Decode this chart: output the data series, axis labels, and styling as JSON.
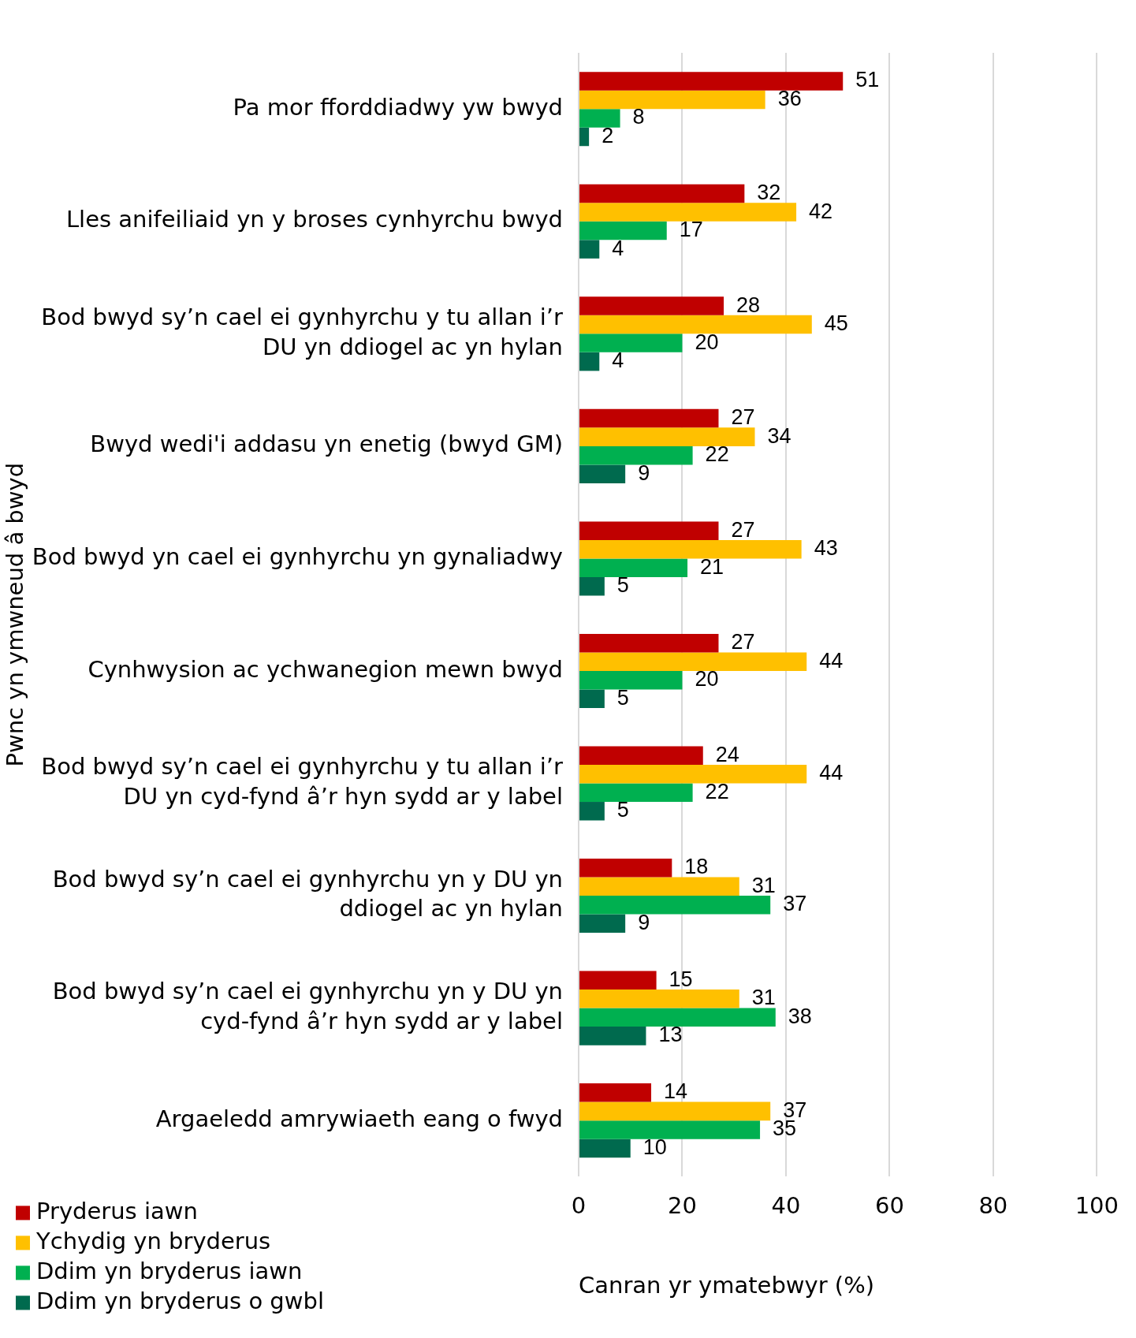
{
  "chart_data": {
    "type": "bar",
    "orientation": "horizontal",
    "xlabel": "Canran yr ymatebwyr (%)",
    "ylabel": "Pwnc yn ymwneud â bwyd",
    "categories": [
      "Pa mor fforddiadwy yw bwyd",
      "Lles anifeiliaid yn y broses cynhyrchu bwyd",
      "Bod bwyd sy’n cael ei gynhyrchu y tu allan i’r DU yn ddiogel ac yn hylan",
      "Bwyd wedi'i addasu yn enetig (bwyd GM)",
      "Bod bwyd yn cael ei gynhyrchu yn gynaliadwy",
      "Cynhwysion ac ychwanegion mewn bwyd",
      "Bod bwyd sy’n cael ei gynhyrchu y tu allan i’r DU yn cyd-fynd â’r hyn sydd ar y label",
      "Bod bwyd sy’n cael ei gynhyrchu yn y DU yn ddiogel ac yn hylan",
      "Bod bwyd sy’n cael ei gynhyrchu yn y DU yn cyd-fynd â’r hyn sydd ar y label",
      "Argaeledd amrywiaeth eang o fwyd"
    ],
    "series": [
      {
        "name": "Pryderus iawn",
        "color": "#c00000",
        "values": [
          51,
          32,
          28,
          27,
          27,
          27,
          24,
          18,
          15,
          14
        ]
      },
      {
        "name": "Ychydig yn bryderus",
        "color": "#ffc000",
        "values": [
          36,
          42,
          45,
          34,
          43,
          44,
          44,
          31,
          31,
          37
        ]
      },
      {
        "name": "Ddim yn bryderus iawn",
        "color": "#00b050",
        "values": [
          8,
          17,
          20,
          22,
          21,
          20,
          22,
          37,
          38,
          35
        ]
      },
      {
        "name": "Ddim yn bryderus o gwbl",
        "color": "#006a4e",
        "values": [
          2,
          4,
          4,
          9,
          5,
          5,
          5,
          9,
          13,
          10
        ]
      }
    ],
    "xlim": [
      0,
      100
    ],
    "xticks": [
      0,
      20,
      40,
      60,
      80,
      100
    ],
    "grid": "x",
    "legend": "bottom left",
    "data_labels": true
  }
}
